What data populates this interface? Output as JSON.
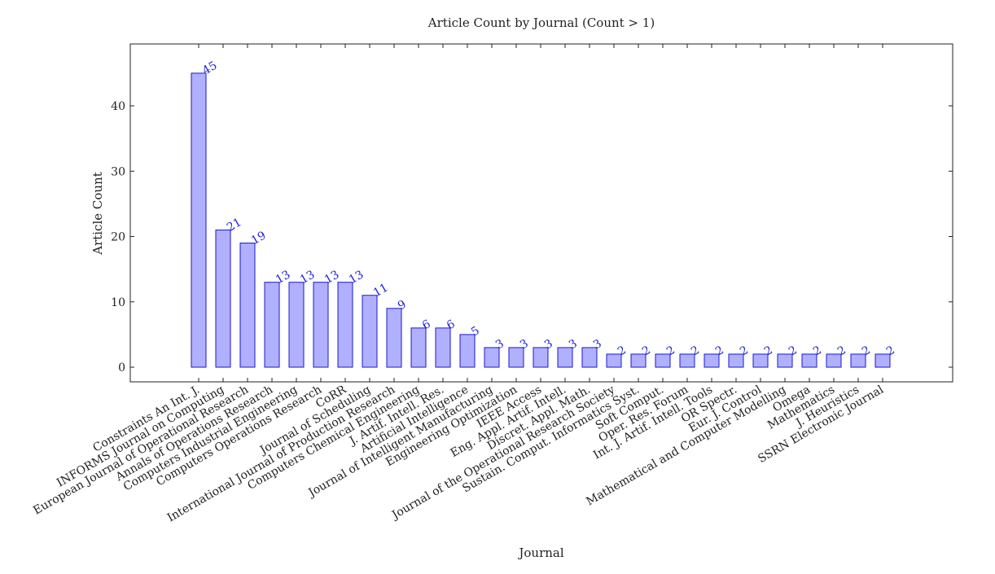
{
  "chart_data": {
    "type": "bar",
    "title": "Article Count by Journal (Count > 1)",
    "xlabel": "Journal",
    "ylabel": "Article Count",
    "ylim": [
      -2,
      50
    ],
    "yticks": [
      0,
      10,
      20,
      30,
      40
    ],
    "grid": false,
    "bar_color": "#b0b0ff",
    "bar_edge_color": "#1a1acc",
    "label_color": "#1f1fd6",
    "categories": [
      "Constraints An Int. J.",
      "INFORMS Journal on Computing",
      "European Journal of Operational Research",
      "Annals of Operations Research",
      "Computers  Industrial Engineering",
      "Computers  Operations Research",
      "CoRR",
      "Journal of Scheduling",
      "International Journal of Production Research",
      "Computers  Chemical Engineering",
      "J. Artif. Intell. Res.",
      "Artificial Intelligence",
      "Journal of Intelligent Manufacturing",
      "Engineering Optimization",
      "IEEE Access",
      "Eng. Appl. Artif. Intell.",
      "Discret. Appl. Math.",
      "Journal of the Operational Research Society",
      "Sustain. Comput. Informatics Syst.",
      "Soft Comput.",
      "Oper. Res. Forum",
      "Int. J. Artif. Intell. Tools",
      "OR Spectr.",
      "Eur. J. Control",
      "Mathematical and Computer Modelling",
      "Omega",
      "Mathematics",
      "J. Heuristics",
      "SSRN Electronic Journal"
    ],
    "values": [
      45,
      21,
      19,
      13,
      13,
      13,
      13,
      11,
      9,
      6,
      6,
      5,
      3,
      3,
      3,
      3,
      3,
      2,
      2,
      2,
      2,
      2,
      2,
      2,
      2,
      2,
      2,
      2,
      2
    ]
  }
}
